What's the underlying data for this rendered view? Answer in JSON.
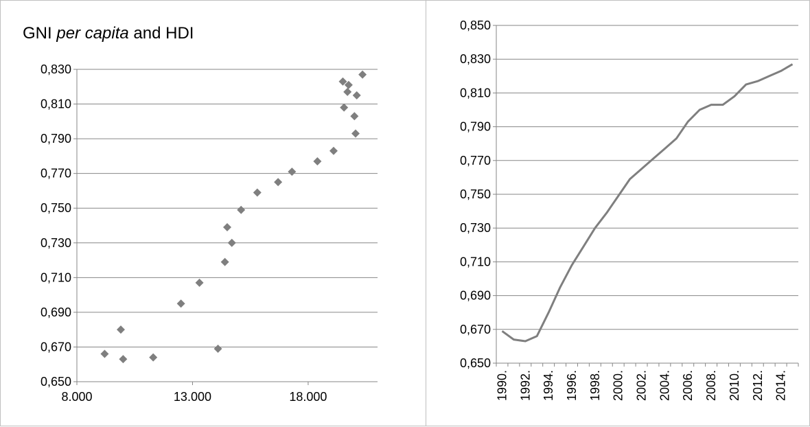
{
  "colors": {
    "series": "#7f7f7f",
    "grid": "#868686",
    "text": "#000000",
    "border": "#bfbfbf"
  },
  "chart_data": [
    {
      "type": "scatter",
      "title_parts": [
        "GNI ",
        "per capita",
        " and HDI"
      ],
      "xlim": [
        8000,
        21000
      ],
      "ylim": [
        0.65,
        0.83
      ],
      "x_ticks": [
        "8.000",
        "13.000",
        "18.000"
      ],
      "x_tick_values": [
        8000,
        13000,
        18000
      ],
      "y_ticks": [
        "0,650",
        "0,670",
        "0,690",
        "0,710",
        "0,730",
        "0,750",
        "0,770",
        "0,790",
        "0,810",
        "0,830"
      ],
      "y_tick_values": [
        0.65,
        0.67,
        0.69,
        0.71,
        0.73,
        0.75,
        0.77,
        0.79,
        0.81,
        0.83
      ],
      "grid": "horizontal",
      "marker": "diamond",
      "points": [
        [
          9200,
          0.666
        ],
        [
          9900,
          0.68
        ],
        [
          10000,
          0.663
        ],
        [
          11300,
          0.664
        ],
        [
          12500,
          0.695
        ],
        [
          13300,
          0.707
        ],
        [
          14100,
          0.669
        ],
        [
          14400,
          0.719
        ],
        [
          14500,
          0.739
        ],
        [
          14700,
          0.73
        ],
        [
          15100,
          0.749
        ],
        [
          15800,
          0.759
        ],
        [
          16700,
          0.765
        ],
        [
          17300,
          0.771
        ],
        [
          18400,
          0.777
        ],
        [
          19100,
          0.783
        ],
        [
          19500,
          0.823
        ],
        [
          19550,
          0.808
        ],
        [
          19700,
          0.817
        ],
        [
          19750,
          0.821
        ],
        [
          20000,
          0.803
        ],
        [
          20050,
          0.793
        ],
        [
          20100,
          0.815
        ],
        [
          20350,
          0.827
        ]
      ]
    },
    {
      "type": "line",
      "ylim": [
        0.65,
        0.85
      ],
      "y_ticks": [
        "0,650",
        "0,670",
        "0,690",
        "0,710",
        "0,730",
        "0,750",
        "0,770",
        "0,790",
        "0,810",
        "0,830",
        "0,850"
      ],
      "y_tick_values": [
        0.65,
        0.67,
        0.69,
        0.71,
        0.73,
        0.75,
        0.77,
        0.79,
        0.81,
        0.83,
        0.85
      ],
      "x_ticks": [
        "1990.",
        "1992.",
        "1994.",
        "1996.",
        "1998.",
        "2000.",
        "2002.",
        "2004.",
        "2006.",
        "2008.",
        "2010.",
        "2012.",
        "2014."
      ],
      "x": [
        1990,
        1991,
        1992,
        1993,
        1994,
        1995,
        1996,
        1997,
        1998,
        1999,
        2000,
        2001,
        2002,
        2003,
        2004,
        2005,
        2006,
        2007,
        2008,
        2009,
        2010,
        2011,
        2012,
        2013,
        2014,
        2015
      ],
      "values": [
        0.669,
        0.664,
        0.663,
        0.666,
        0.68,
        0.695,
        0.708,
        0.719,
        0.73,
        0.739,
        0.749,
        0.759,
        0.765,
        0.771,
        0.777,
        0.783,
        0.793,
        0.8,
        0.803,
        0.803,
        0.808,
        0.815,
        0.817,
        0.82,
        0.823,
        0.827
      ],
      "grid": "horizontal"
    }
  ]
}
